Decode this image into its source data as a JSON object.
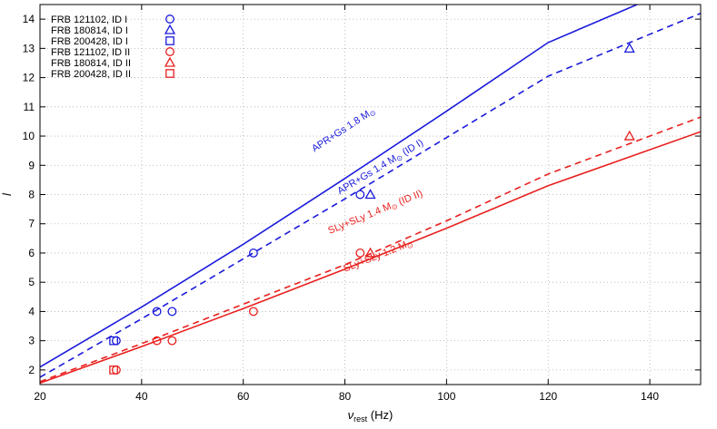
{
  "chart_data": {
    "type": "scatter",
    "title": "",
    "xlabel": {
      "main": "ν",
      "sub": "rest",
      "unit": " (Hz)"
    },
    "ylabel": "l",
    "xlim": [
      20,
      150
    ],
    "ylim": [
      1.5,
      14.5
    ],
    "xticks": [
      20,
      40,
      60,
      80,
      100,
      120,
      140
    ],
    "yticks": [
      2,
      3,
      4,
      5,
      6,
      7,
      8,
      9,
      10,
      11,
      12,
      13,
      14
    ],
    "grid": true,
    "grid_style": "dotted",
    "legend_position": "top-left",
    "colors": {
      "id_i": "#1a1adb",
      "id_ii": "#e8201e"
    },
    "legend": [
      {
        "label": "FRB 121102, ID I",
        "marker": "circle",
        "color": "#1a1adb"
      },
      {
        "label": "FRB 180814, ID I",
        "marker": "triangle",
        "color": "#1a1adb"
      },
      {
        "label": "FRB 200428, ID I",
        "marker": "square",
        "color": "#1a1adb"
      },
      {
        "label": "FRB 121102, ID II",
        "marker": "circle",
        "color": "#e8201e"
      },
      {
        "label": "FRB 180814, ID II",
        "marker": "triangle",
        "color": "#e8201e"
      },
      {
        "label": "FRB 200428, ID II",
        "marker": "square",
        "color": "#e8201e"
      }
    ],
    "series": [
      {
        "source": "FRB 121102",
        "identification": "ID I",
        "marker": "circle",
        "color": "#1a1adb",
        "points": [
          [
            35,
            3
          ],
          [
            43,
            4
          ],
          [
            46,
            4
          ],
          [
            62,
            6
          ],
          [
            83,
            8
          ]
        ]
      },
      {
        "source": "FRB 180814",
        "identification": "ID I",
        "marker": "triangle",
        "color": "#1a1adb",
        "points": [
          [
            85,
            8
          ],
          [
            136,
            13
          ]
        ]
      },
      {
        "source": "FRB 200428",
        "identification": "ID I",
        "marker": "square",
        "color": "#1a1adb",
        "points": [
          [
            34.5,
            3
          ]
        ]
      },
      {
        "source": "FRB 121102",
        "identification": "ID II",
        "marker": "circle",
        "color": "#e8201e",
        "points": [
          [
            35,
            2
          ],
          [
            43,
            3
          ],
          [
            46,
            3
          ],
          [
            62,
            4
          ],
          [
            83,
            6
          ]
        ]
      },
      {
        "source": "FRB 180814",
        "identification": "ID II",
        "marker": "triangle",
        "color": "#e8201e",
        "points": [
          [
            85,
            6
          ],
          [
            136,
            10
          ]
        ]
      },
      {
        "source": "FRB 200428",
        "identification": "ID II",
        "marker": "square",
        "color": "#e8201e",
        "points": [
          [
            34.5,
            2
          ]
        ]
      }
    ],
    "curves": [
      {
        "label": "APR+Gs 1.8 M",
        "suffix": "",
        "color": "#1a1adb",
        "dash": false,
        "points": [
          [
            20,
            2.1
          ],
          [
            40,
            4.15
          ],
          [
            60,
            6.3
          ],
          [
            80,
            8.55
          ],
          [
            100,
            10.85
          ],
          [
            120,
            13.2
          ],
          [
            137.5,
            14.5
          ]
        ]
      },
      {
        "label": "APR+Gs 1.4 M",
        "suffix": " (ID I)",
        "color": "#1a1adb",
        "dash": true,
        "points": [
          [
            20,
            1.75
          ],
          [
            40,
            3.75
          ],
          [
            60,
            5.8
          ],
          [
            80,
            7.85
          ],
          [
            100,
            9.95
          ],
          [
            120,
            12.05
          ],
          [
            150,
            14.2
          ]
        ]
      },
      {
        "label": "SLy+SLy 1.4 M",
        "suffix": " (ID II)",
        "color": "#e8201e",
        "dash": true,
        "points": [
          [
            20,
            1.6
          ],
          [
            40,
            2.9
          ],
          [
            60,
            4.25
          ],
          [
            80,
            5.6
          ],
          [
            100,
            7.1
          ],
          [
            120,
            8.7
          ],
          [
            150,
            10.65
          ]
        ]
      },
      {
        "label": "SLy+SLy 1.2 M",
        "suffix": "",
        "color": "#e8201e",
        "dash": false,
        "points": [
          [
            20,
            1.55
          ],
          [
            40,
            2.8
          ],
          [
            60,
            4.1
          ],
          [
            80,
            5.45
          ],
          [
            100,
            6.85
          ],
          [
            120,
            8.3
          ],
          [
            150,
            10.15
          ]
        ]
      }
    ]
  }
}
